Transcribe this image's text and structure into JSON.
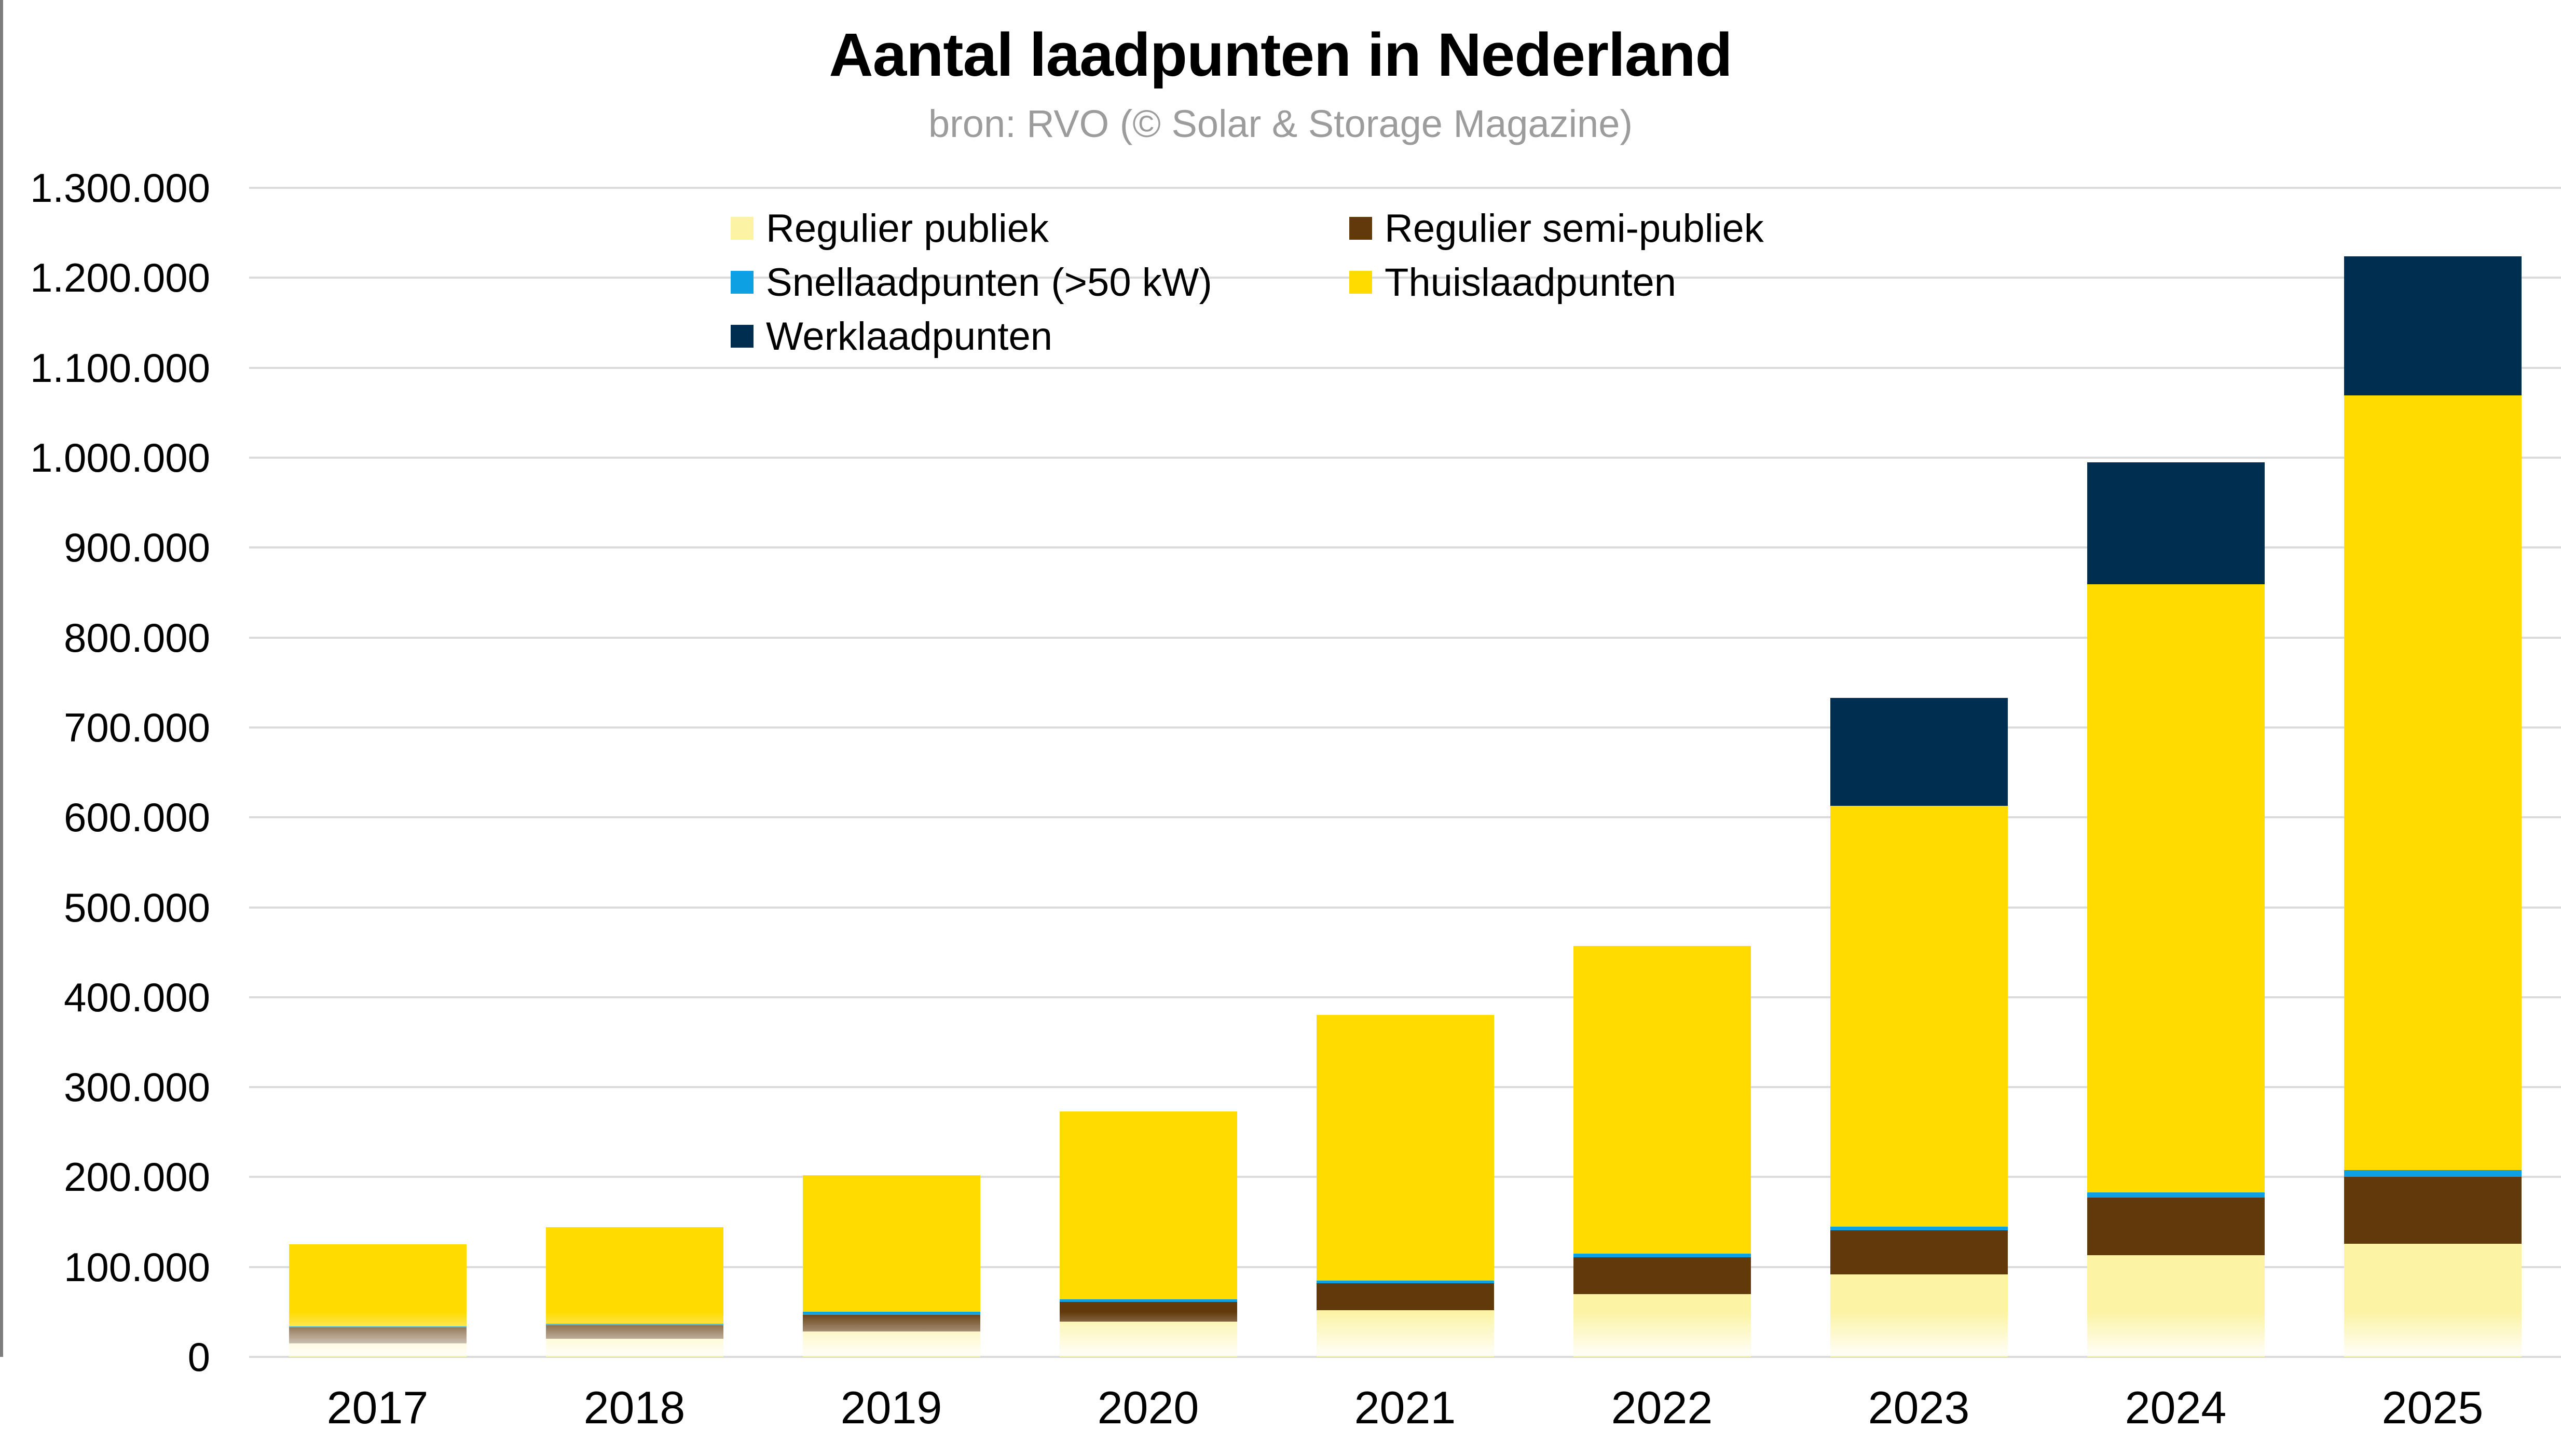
{
  "header": {
    "title": "Aantal laadpunten in Nederland",
    "subtitle": "bron: RVO (© Solar & Storage Magazine)"
  },
  "colors": {
    "regulier_publiek": "#fcf3a4",
    "regulier_semi_publiek": "#61390b",
    "snellaadpunten": "#0da0e2",
    "thuislaadpunten": "#ffdb00",
    "werklaadpunten": "#002e50",
    "gridline": "#dbdbdb",
    "subtitle_gray": "#9c9c9c",
    "axis_border_gray": "#7d7d7d"
  },
  "chart_data": {
    "type": "bar",
    "stacked": true,
    "title": "Aantal laadpunten in Nederland",
    "subtitle": "bron: RVO (© Solar & Storage Magazine)",
    "categories": [
      "2017",
      "2018",
      "2019",
      "2020",
      "2021",
      "2022",
      "2023",
      "2024",
      "2025"
    ],
    "series": [
      {
        "name": "Regulier publiek",
        "color": "#fcf3a4",
        "values": [
          15000,
          20000,
          28000,
          39000,
          52000,
          70000,
          92000,
          113000,
          126000
        ]
      },
      {
        "name": "Regulier semi-publiek",
        "color": "#61390b",
        "values": [
          18000,
          15000,
          19000,
          22000,
          30000,
          41000,
          49000,
          64000,
          74000
        ]
      },
      {
        "name": "Snellaadpunten (>50 kW)",
        "color": "#0da0e2",
        "values": [
          1000,
          2000,
          3000,
          3000,
          3000,
          4000,
          4000,
          6000,
          8000
        ]
      },
      {
        "name": "Thuislaadpunten",
        "color": "#ffdb00",
        "values": [
          91000,
          107000,
          152000,
          209000,
          295000,
          342000,
          468000,
          676000,
          861000
        ]
      },
      {
        "name": "Werklaadpunten",
        "color": "#002e50",
        "values": [
          0,
          0,
          0,
          0,
          0,
          0,
          120000,
          136000,
          155000
        ]
      }
    ],
    "stack_order_bottom_to_top": [
      "Regulier publiek",
      "Regulier semi-publiek",
      "Snellaadpunten (>50 kW)",
      "Thuislaadpunten",
      "Werklaadpunten"
    ],
    "totals": [
      125000,
      144000,
      202000,
      273000,
      380000,
      457000,
      733000,
      995000,
      1224000
    ],
    "ylim": [
      0,
      1300000
    ],
    "grid": true,
    "legend_position": "top-center",
    "legend_items_row_major": [
      "Regulier publiek",
      "Regulier semi-publiek",
      "Snellaadpunten (>50 kW)",
      "Thuislaadpunten",
      "Werklaadpunten"
    ],
    "y_ticks": [
      {
        "value": 0,
        "label": "0"
      },
      {
        "value": 100000,
        "label": "100.000"
      },
      {
        "value": 200000,
        "label": "200.000"
      },
      {
        "value": 300000,
        "label": "300.000"
      },
      {
        "value": 400000,
        "label": "400.000"
      },
      {
        "value": 500000,
        "label": "500.000"
      },
      {
        "value": 600000,
        "label": "600.000"
      },
      {
        "value": 700000,
        "label": "700.000"
      },
      {
        "value": 800000,
        "label": "800.000"
      },
      {
        "value": 900000,
        "label": "900.000"
      },
      {
        "value": 1000000,
        "label": "1.000.000"
      },
      {
        "value": 1100000,
        "label": "1.100.000"
      },
      {
        "value": 1200000,
        "label": "1.200.000"
      },
      {
        "value": 1300000,
        "label": "1.300.000"
      }
    ]
  }
}
